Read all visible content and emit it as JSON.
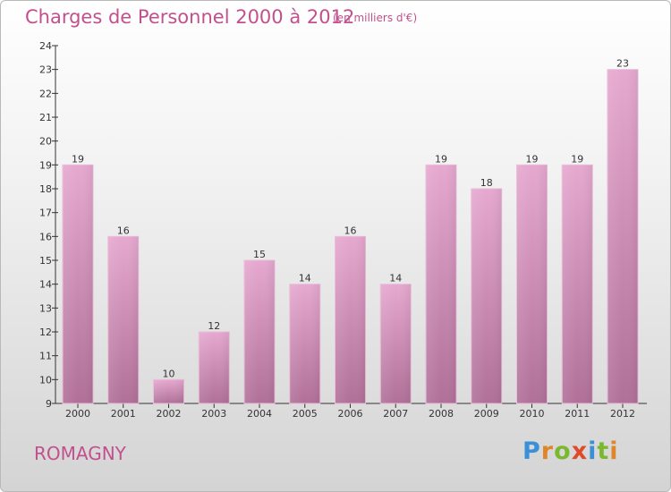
{
  "header": {
    "title": "Charges de Personnel 2000 à 2012",
    "subtitle": "(en milliers d'€)"
  },
  "footer": {
    "commune": "ROMAGNY",
    "logo": "Proxiti"
  },
  "colors": {
    "bar_top": "#e4a4cc",
    "bar_bottom": "#b0709c",
    "text_accent": "#c2508e"
  },
  "chart_data": {
    "type": "bar",
    "categories": [
      "2000",
      "2001",
      "2002",
      "2003",
      "2004",
      "2005",
      "2006",
      "2007",
      "2008",
      "2009",
      "2010",
      "2011",
      "2012"
    ],
    "values": [
      19,
      16,
      10,
      12,
      15,
      14,
      16,
      14,
      19,
      18,
      19,
      19,
      23
    ],
    "title": "Charges de Personnel 2000 à 2012",
    "ylabel": "",
    "xlabel": "",
    "ylim": [
      9,
      24
    ],
    "yticks": [
      9,
      10,
      11,
      12,
      13,
      14,
      15,
      16,
      17,
      18,
      19,
      20,
      21,
      22,
      23,
      24
    ],
    "grid": false,
    "data_labels": true
  }
}
